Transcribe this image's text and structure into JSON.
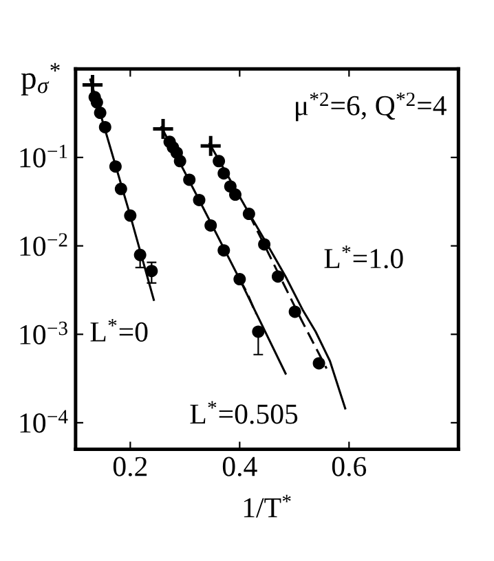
{
  "chart_data": {
    "type": "scatter",
    "xlabel": "1/T$^{*}$",
    "ylabel": "p$_{σ}$$^{*}$",
    "log": "y",
    "xlim": [
      0.1,
      0.8
    ],
    "ylim": [
      5e-05,
      1
    ],
    "xticks": [
      0.2,
      0.4,
      0.6
    ],
    "yticks": [
      {
        "value": 0.1,
        "label": "10$^{−1}$"
      },
      {
        "value": 0.01,
        "label": "10$^{−2}$"
      },
      {
        "value": 0.001,
        "label": "10$^{−3}$"
      },
      {
        "value": 0.0001,
        "label": "10$^{−4}$"
      }
    ],
    "grid": false,
    "series": [
      {
        "type": "line",
        "color": "#000000",
        "line_style": "solid",
        "marker": "none",
        "x": [
          0.127,
          0.2,
          0.243
        ],
        "values": [
          0.76,
          0.022,
          0.00245
        ]
      },
      {
        "type": "line",
        "color": "#000000",
        "line_style": "solid",
        "marker": "none",
        "x": [
          0.257,
          0.326,
          0.4,
          0.484
        ],
        "values": [
          0.22,
          0.033,
          0.0042,
          0.00036
        ]
      },
      {
        "type": "line",
        "color": "#000000",
        "line_style": "dashed",
        "marker": "none",
        "x": [
          0.4,
          0.413,
          0.43
        ],
        "values": [
          0.0042,
          0.003,
          0.0017
        ]
      },
      {
        "type": "line",
        "color": "#000000",
        "line_style": "solid",
        "marker": "none",
        "x": [
          0.345,
          0.417,
          0.45,
          0.484,
          0.515,
          0.539,
          0.565,
          0.593
        ],
        "values": [
          0.143,
          0.0235,
          0.0105,
          0.0045,
          0.0019,
          0.00107,
          0.0005,
          0.000145
        ]
      },
      {
        "type": "line",
        "color": "#000000",
        "line_style": "dashed",
        "marker": "none",
        "x": [
          0.417,
          0.47,
          0.513,
          0.559
        ],
        "values": [
          0.023,
          0.005,
          0.00145,
          0.00041
        ]
      },
      {
        "color": "#000000",
        "marker": "cross",
        "x": [
          0.131,
          0.26,
          0.347
        ],
        "values": [
          0.66,
          0.21,
          0.135
        ]
      },
      {
        "color": "#000000",
        "marker": "circle",
        "x": [
          0.135,
          0.139,
          0.145,
          0.154,
          0.173,
          0.183,
          0.2,
          0.218,
          0.239
        ],
        "values": [
          0.48,
          0.42,
          0.32,
          0.22,
          0.079,
          0.044,
          0.022,
          0.0079,
          0.0052
        ],
        "errors": [
          null,
          null,
          null,
          null,
          null,
          null,
          null,
          [
            0.0057,
            0.0079
          ],
          [
            0.0038,
            0.0065
          ]
        ]
      },
      {
        "color": "#000000",
        "marker": "circle",
        "x": [
          0.272,
          0.278,
          0.285,
          0.291,
          0.308,
          0.326,
          0.347,
          0.371,
          0.4,
          0.434
        ],
        "values": [
          0.15,
          0.13,
          0.113,
          0.091,
          0.056,
          0.033,
          0.017,
          0.0089,
          0.0042,
          0.00107
        ],
        "errors": [
          null,
          null,
          null,
          null,
          null,
          null,
          null,
          null,
          null,
          [
            0.00059,
            0.00107
          ]
        ]
      },
      {
        "color": "#000000",
        "marker": "circle",
        "x": [
          0.362,
          0.371,
          0.383,
          0.392,
          0.417,
          0.445,
          0.47,
          0.501,
          0.545
        ],
        "values": [
          0.091,
          0.066,
          0.047,
          0.038,
          0.023,
          0.0104,
          0.0045,
          0.0018,
          0.00047
        ]
      }
    ],
    "annotations": [
      "μ$^{*2}$=6, Q$^{*2}$=4",
      "L$^{*}$=0",
      "L$^{*}$=0.505",
      "L$^{*}$=1.0"
    ]
  }
}
